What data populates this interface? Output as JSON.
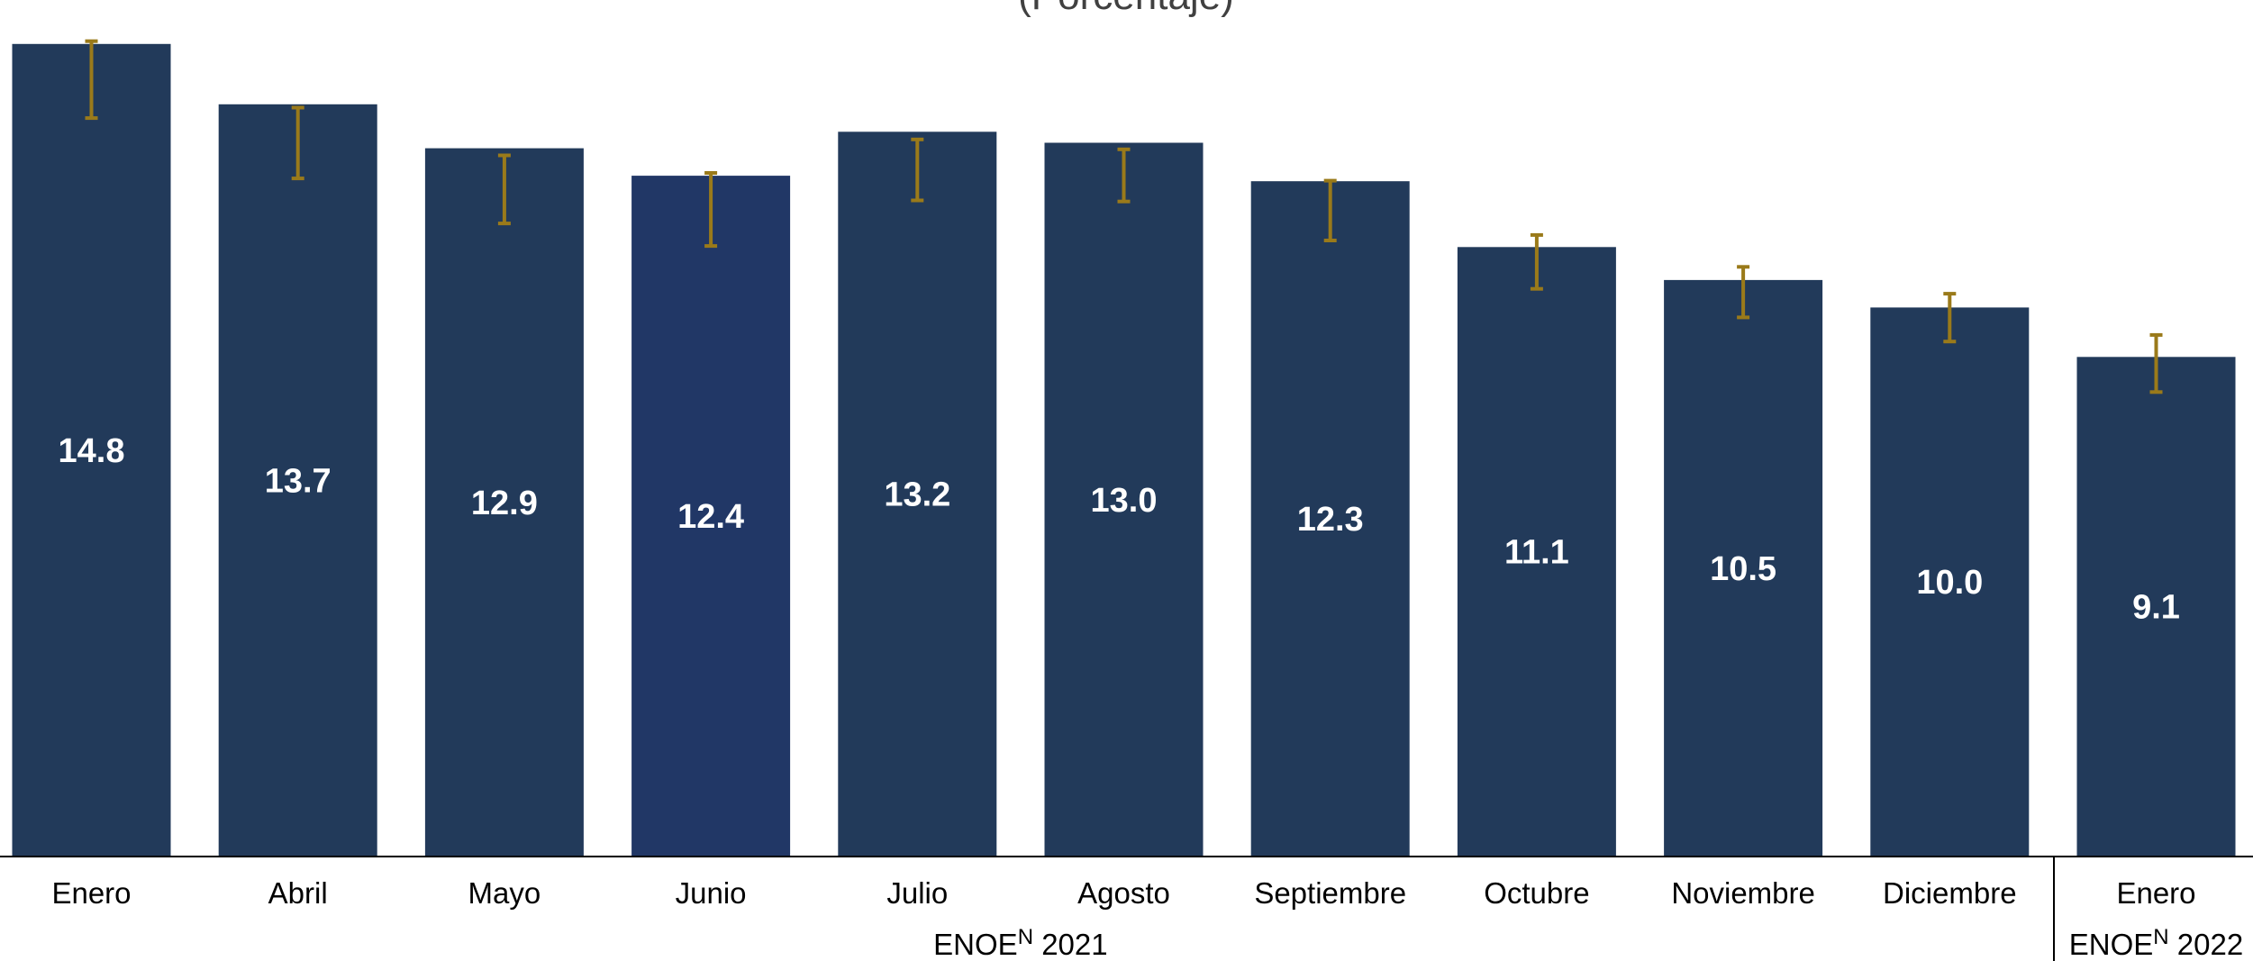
{
  "chart_data": {
    "type": "bar",
    "subtitle": "(Porcentaje)",
    "categories": [
      "Enero",
      "Abril",
      "Mayo",
      "Junio",
      "Julio",
      "Agosto",
      "Septiembre",
      "Octubre",
      "Noviembre",
      "Diciembre",
      "Enero"
    ],
    "values": [
      14.8,
      13.7,
      12.9,
      12.4,
      13.2,
      13.0,
      12.3,
      11.1,
      10.5,
      10.0,
      9.1
    ],
    "value_labels": [
      "14.8",
      "13.7",
      "12.9",
      "12.4",
      "13.2",
      "13.0",
      "12.3",
      "11.1",
      "10.5",
      "10.0",
      "9.1"
    ],
    "error_bars": [
      [
        13.45,
        14.85
      ],
      [
        12.35,
        13.64
      ],
      [
        11.53,
        12.77
      ],
      [
        11.12,
        12.45
      ],
      [
        11.95,
        13.06
      ],
      [
        11.93,
        12.88
      ],
      [
        11.22,
        12.31
      ],
      [
        10.34,
        11.32
      ],
      [
        9.82,
        10.74
      ],
      [
        9.38,
        10.25
      ],
      [
        8.46,
        9.5
      ]
    ],
    "groups": [
      {
        "name": "ENOE",
        "superscript": "N",
        "year": "2021",
        "categories": [
          0,
          1,
          2,
          3,
          4,
          5,
          6,
          7,
          8,
          9
        ]
      },
      {
        "name": "ENOE",
        "superscript": "N",
        "year": "2022",
        "categories": [
          10
        ]
      }
    ],
    "ylim": [
      0,
      15.6
    ],
    "grid": false,
    "colors": {
      "bar": "#223a5a",
      "bar_highlight": "#213766",
      "error_bar": "#9a7a1a",
      "value_label": "#ffffff",
      "axis": "#000000"
    },
    "highlight_index": 3
  }
}
